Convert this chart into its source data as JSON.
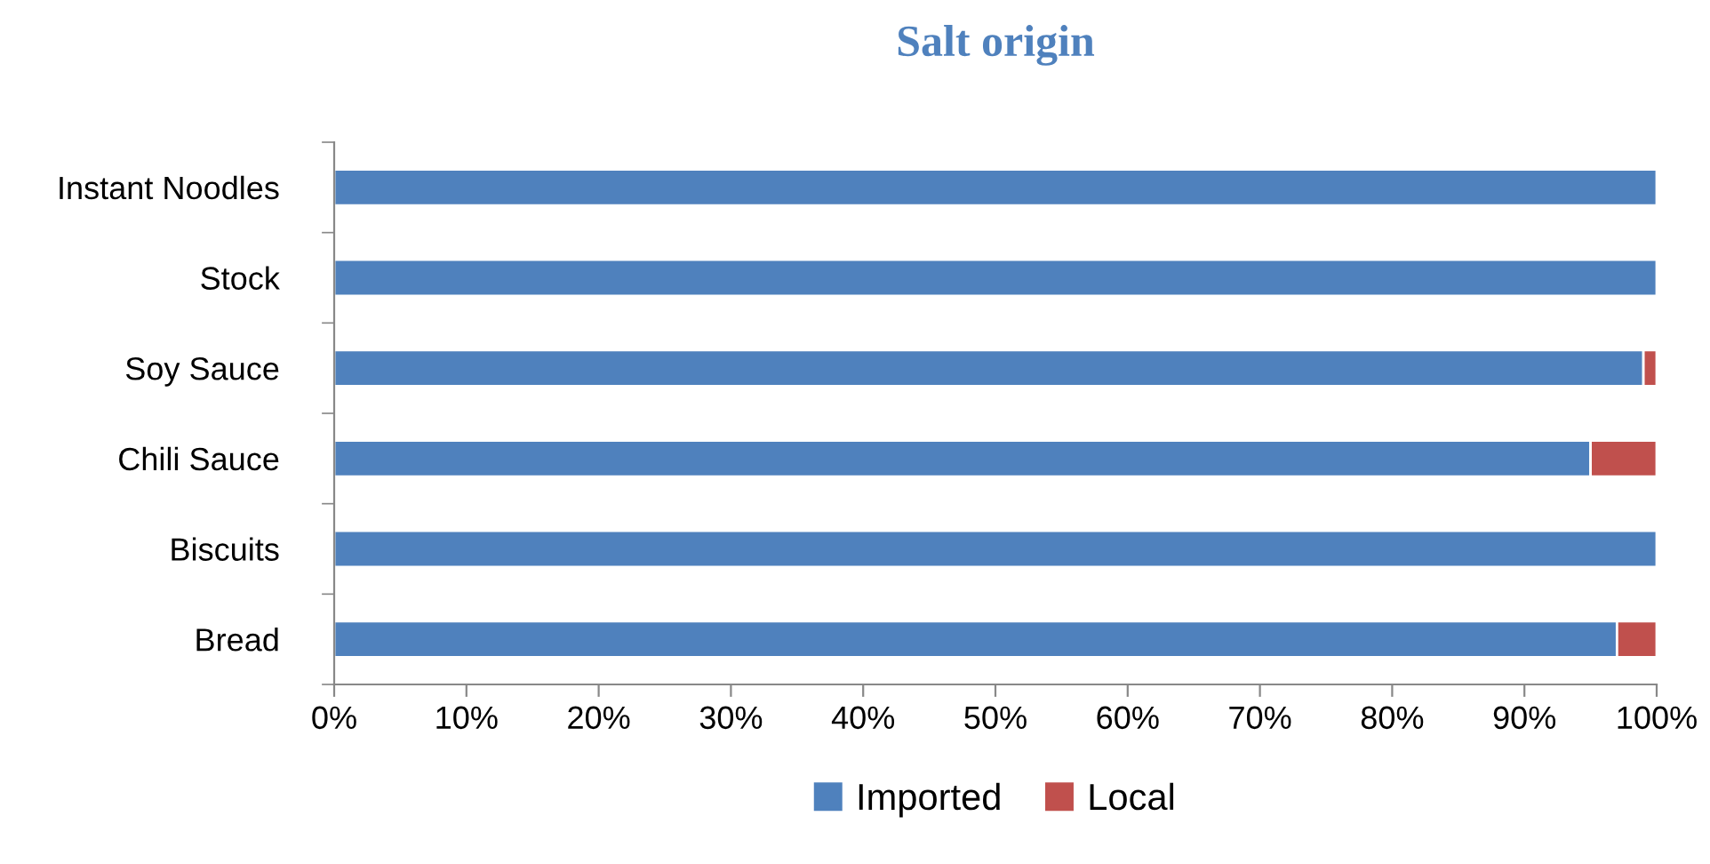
{
  "chart_data": {
    "type": "bar",
    "orientation": "horizontal",
    "stacked": true,
    "title": "Salt origin",
    "categories": [
      "Instant Noodles",
      "Stock",
      "Soy Sauce",
      "Chili Sauce",
      "Biscuits",
      "Bread"
    ],
    "series": [
      {
        "name": "Imported",
        "color": "#4f81bd",
        "values": [
          100,
          100,
          99,
          95,
          100,
          97
        ]
      },
      {
        "name": "Local",
        "color": "#c0504d",
        "values": [
          0,
          0,
          1,
          5,
          0,
          3
        ]
      }
    ],
    "xlim": [
      0,
      100
    ],
    "xticks": [
      {
        "value": 0,
        "label": "0%"
      },
      {
        "value": 10,
        "label": "10%"
      },
      {
        "value": 20,
        "label": "20%"
      },
      {
        "value": 30,
        "label": "30%"
      },
      {
        "value": 40,
        "label": "40%"
      },
      {
        "value": 50,
        "label": "50%"
      },
      {
        "value": 60,
        "label": "60%"
      },
      {
        "value": 70,
        "label": "70%"
      },
      {
        "value": 80,
        "label": "80%"
      },
      {
        "value": 90,
        "label": "90%"
      },
      {
        "value": 100,
        "label": "100%"
      }
    ],
    "grid": false,
    "legend": "bottom"
  }
}
